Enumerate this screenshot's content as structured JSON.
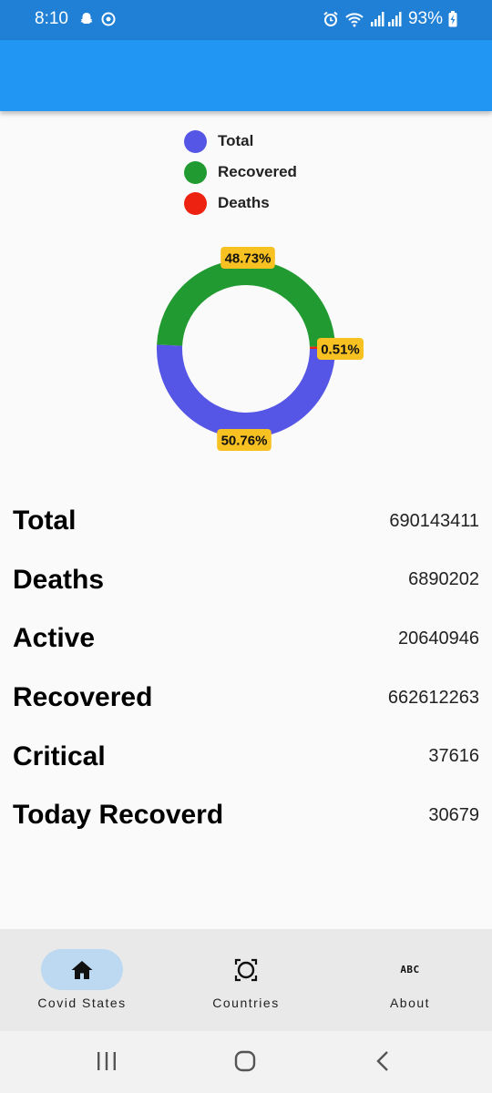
{
  "status_bar": {
    "time": "8:10",
    "battery": "93%",
    "icons": [
      "snapchat-icon",
      "messenger-icon",
      "alarm-icon",
      "wifi-icon",
      "signal-icon",
      "battery-charging-icon"
    ]
  },
  "legend": [
    {
      "label": "Total",
      "color": "#5656e6"
    },
    {
      "label": "Recovered",
      "color": "#229a32"
    },
    {
      "label": "Deaths",
      "color": "#ee2211"
    }
  ],
  "chart_data": {
    "type": "pie",
    "categories": [
      "Total",
      "Recovered",
      "Deaths"
    ],
    "values": [
      50.76,
      48.73,
      0.51
    ],
    "data_labels": [
      "50.76%",
      "48.73%",
      "0.51%"
    ],
    "colors": [
      "#5656e6",
      "#229a32",
      "#ee2211"
    ],
    "label_bg": "#f7c122",
    "legend_position": "top"
  },
  "stats": [
    {
      "label": "Total",
      "value": "690143411"
    },
    {
      "label": "Deaths",
      "value": "6890202"
    },
    {
      "label": "Active",
      "value": "20640946"
    },
    {
      "label": "Recovered",
      "value": "662612263"
    },
    {
      "label": "Critical",
      "value": "37616"
    },
    {
      "label": "Today Recoverd",
      "value": "30679"
    }
  ],
  "bottom_nav": {
    "items": [
      {
        "label": "Covid States",
        "icon": "home-icon",
        "active": true
      },
      {
        "label": "Countries",
        "icon": "scan-circle-icon",
        "active": false
      },
      {
        "label": "About",
        "icon": "abc-icon",
        "active": false
      }
    ],
    "about_icon_text": "ABC"
  },
  "system_nav": {
    "icons": [
      "recents-icon",
      "home-circle-icon",
      "back-icon"
    ]
  }
}
